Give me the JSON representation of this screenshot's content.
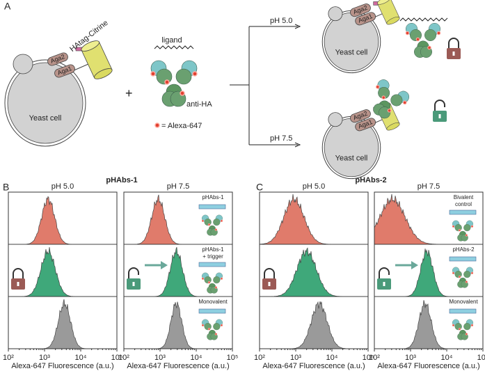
{
  "panel_a": {
    "label": "A",
    "construct": "HAtag-Citrine",
    "aga2": "Aga2",
    "aga1": "Aga1",
    "cell": "Yeast cell",
    "plus": "+",
    "ligand": "ligand",
    "antibody": "anti-HA",
    "dye_legend": "= Alexa-647",
    "branches": [
      {
        "condition": "pH 5.0",
        "aga2": "Aga2",
        "aga1": "Aga1",
        "cell": "Yeast cell"
      },
      {
        "condition": "pH 7.5",
        "aga2": "Aga2",
        "aga1": "Aga1",
        "cell": "Yeast cell"
      }
    ]
  },
  "panel_b": {
    "label": "B",
    "title": "pHAbs-1",
    "plots": [
      {
        "condition": "pH 5.0",
        "x_label": "Alexa-647 Fluorescence (a.u.)",
        "xticks": [
          "10²",
          "10³",
          "10⁴",
          "10⁵"
        ],
        "insets": []
      },
      {
        "condition": "pH 7.5",
        "x_label": "Alexa-647 Fluorescence (a.u.)",
        "xticks": [
          "10²",
          "10³",
          "10⁴",
          "10⁵"
        ],
        "insets": [
          [
            "pHAbs-1"
          ],
          [
            "pHAbs-1",
            "+ trigger"
          ],
          [
            "Monovalent"
          ]
        ]
      }
    ]
  },
  "panel_c": {
    "label": "C",
    "title": "pHAbs-2",
    "plots": [
      {
        "condition": "pH 5.0",
        "x_label": "Alexa-647 Fluorescence (a.u.)",
        "xticks": [
          "10²",
          "10³",
          "10⁴",
          "10⁵"
        ],
        "insets": []
      },
      {
        "condition": "pH 7.5",
        "x_label": "Alexa-647 Fluorescence (a.u.)",
        "xticks": [
          "10²",
          "10³",
          "10⁴",
          "10⁵"
        ],
        "insets": [
          [
            "Bivalent",
            "control"
          ],
          [
            "pHAbs-2"
          ],
          [
            "Monovalent"
          ]
        ]
      }
    ]
  }
}
